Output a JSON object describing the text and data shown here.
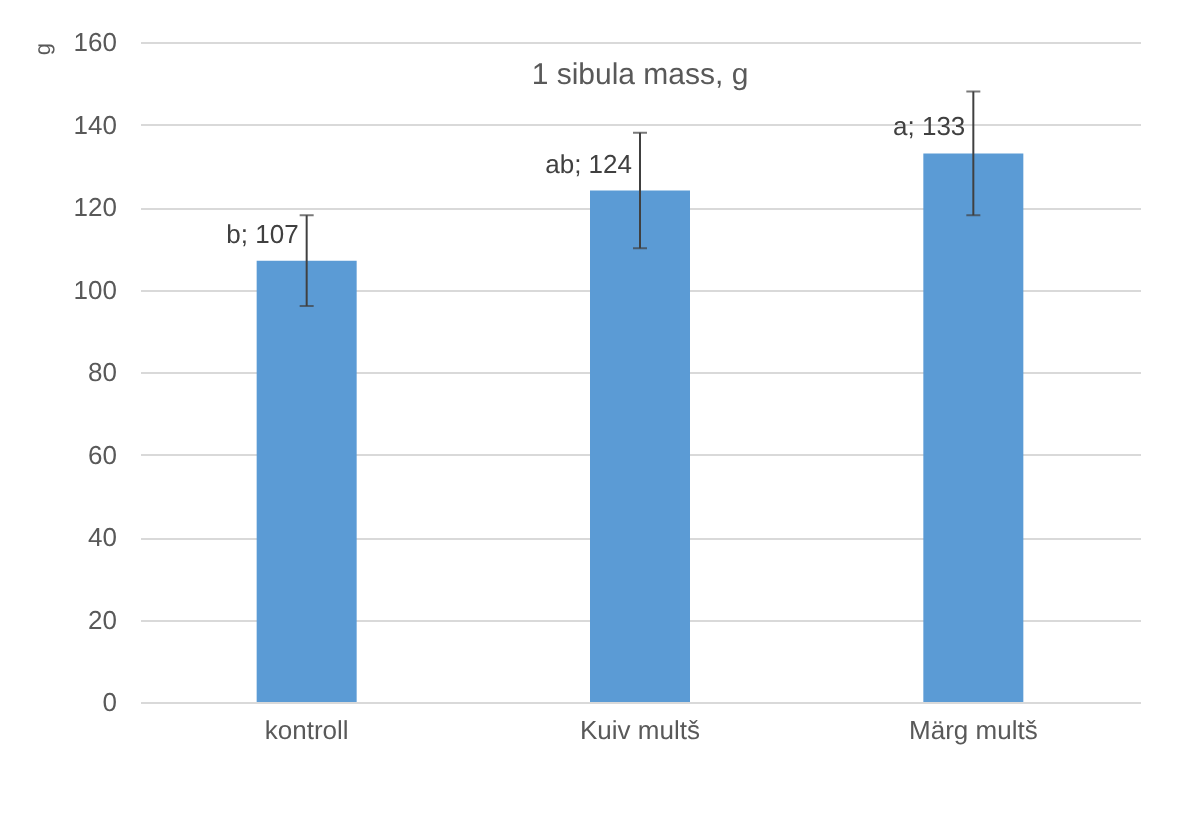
{
  "chart_data": {
    "type": "bar",
    "title": "1 sibula mass, g",
    "ylabel": "g",
    "categories": [
      "kontroll",
      "Kuiv multš",
      "Märg multš"
    ],
    "values": [
      107,
      124,
      133
    ],
    "color": "#5b9bd5",
    "errors": [
      [
        96,
        118
      ],
      [
        110,
        138
      ],
      [
        118,
        148
      ]
    ],
    "value_labels": [
      "b; 107",
      "ab; 124",
      "a; 133"
    ],
    "ylim": [
      0,
      160
    ],
    "yticks": [
      0,
      20,
      40,
      60,
      80,
      100,
      120,
      140,
      160
    ],
    "grid": "y"
  }
}
